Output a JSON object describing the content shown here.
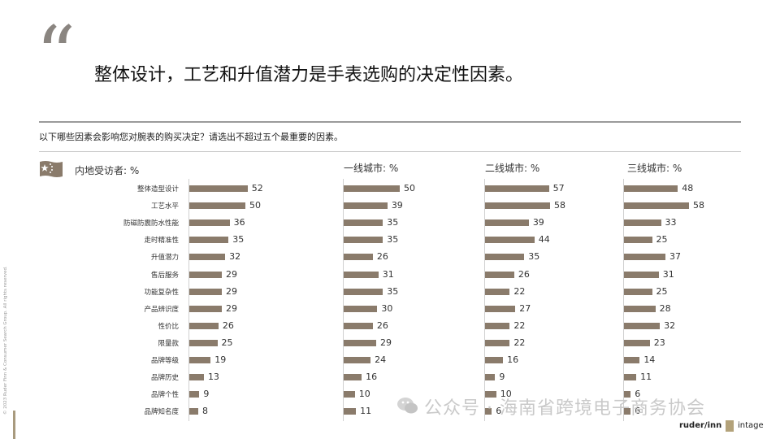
{
  "quote_mark": "“",
  "headline": "整体设计，工艺和升值潜力是手表选购的决定性因素。",
  "question": "以下哪些因素会影响您对腕表的购买决定？请选出不超过五个最重要的因素。",
  "copyright": "© 2023 Ruder Finn & Consumer Search Group. All rights reserved.",
  "watermark": "公众号 · 海南省跨境电子商务协会",
  "logos": {
    "ruder": "ruder/inn",
    "intage": "intage"
  },
  "colors": {
    "bar": "#8a7b6b",
    "rule": "#9a9a9a"
  },
  "chart_data": {
    "type": "bar",
    "orientation": "horizontal",
    "categories": [
      "整体造型设计",
      "工艺水平",
      "防磁防震防水性能",
      "走时精准性",
      "升值潜力",
      "售后服务",
      "功能复杂性",
      "产品辨识度",
      "性价比",
      "限量款",
      "品牌等级",
      "品牌历史",
      "品牌个性",
      "品牌知名度"
    ],
    "series": [
      {
        "name": "内地受访者: %",
        "values": [
          52,
          50,
          36,
          35,
          32,
          29,
          29,
          29,
          26,
          25,
          19,
          13,
          9,
          8
        ]
      },
      {
        "name": "一线城市: %",
        "values": [
          50,
          39,
          35,
          35,
          26,
          31,
          35,
          30,
          26,
          29,
          24,
          16,
          10,
          11
        ]
      },
      {
        "name": "二线城市: %",
        "values": [
          57,
          58,
          39,
          44,
          35,
          26,
          22,
          27,
          22,
          22,
          16,
          9,
          10,
          6
        ]
      },
      {
        "name": "三线城市: %",
        "values": [
          48,
          58,
          33,
          25,
          37,
          31,
          25,
          28,
          32,
          23,
          14,
          11,
          6,
          6
        ]
      }
    ]
  }
}
